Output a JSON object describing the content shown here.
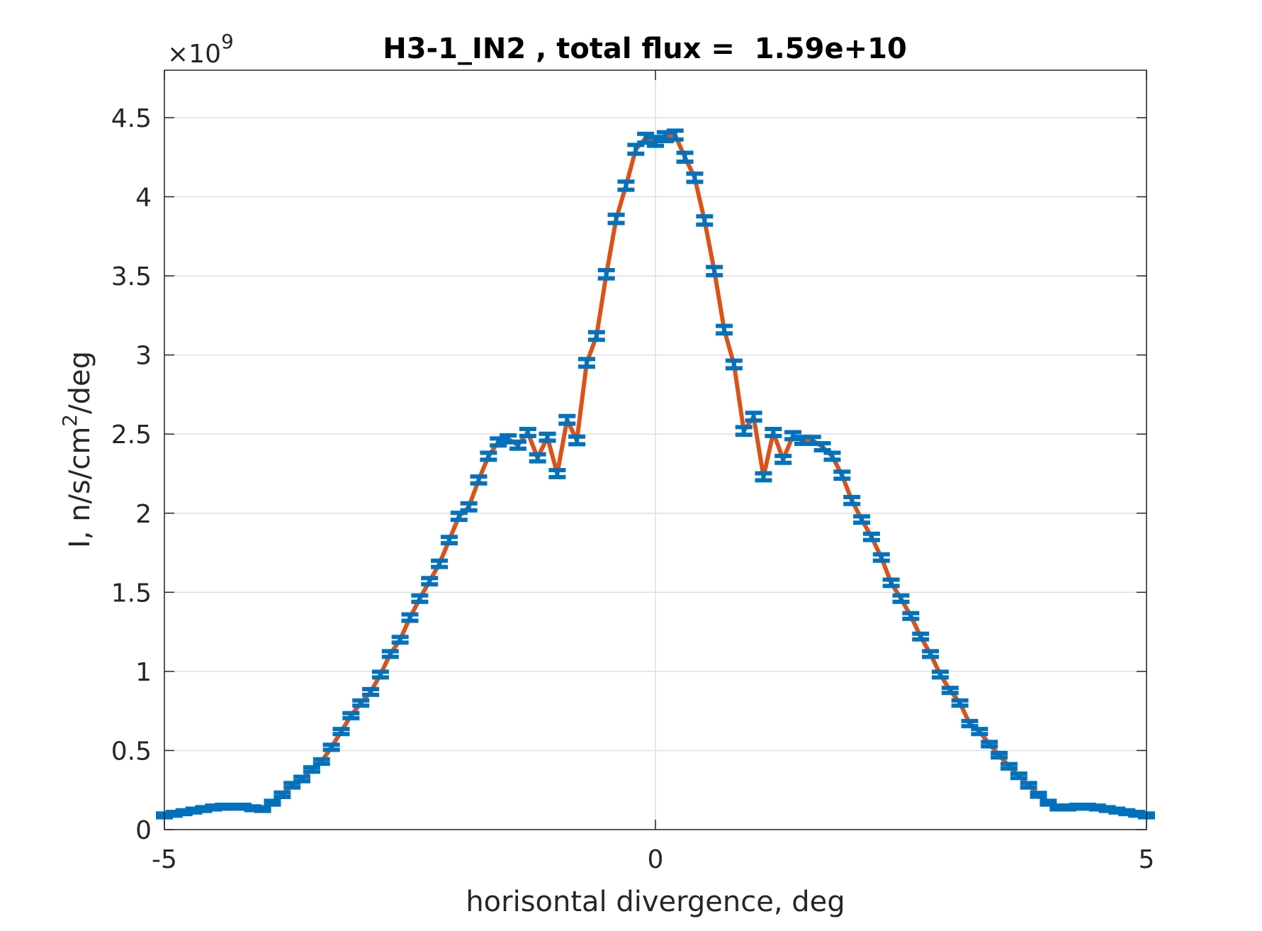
{
  "chart_data": {
    "type": "line",
    "title": "H3-1_IN2 , total flux =  1.59e+10",
    "xlabel": "horisontal divergence, deg",
    "ylabel": "I, n/s/cm²/deg",
    "ylabel_parts": {
      "before": "I, n/s/cm",
      "sup": "2",
      "after": "/deg"
    },
    "y_exponent": {
      "prefix": "×10",
      "power": "9"
    },
    "xlim": [
      -5,
      5
    ],
    "ylim": [
      0,
      4.8
    ],
    "xticks": [
      -5,
      0,
      5
    ],
    "xtick_labels": [
      "-5",
      "0",
      "5"
    ],
    "yticks": [
      0,
      0.5,
      1,
      1.5,
      2,
      2.5,
      3,
      3.5,
      4,
      4.5
    ],
    "ytick_labels": [
      "0",
      "0.5",
      "1",
      "1.5",
      "2",
      "2.5",
      "3",
      "3.5",
      "4",
      "4.5"
    ],
    "grid": true,
    "colors": {
      "line": "#D95319",
      "markers": "#0072BD",
      "grid": "#DFDFDF",
      "axes": "#262626"
    },
    "x": [
      -5.0,
      -4.9,
      -4.8,
      -4.7,
      -4.6,
      -4.5,
      -4.4,
      -4.3,
      -4.2,
      -4.1,
      -4.0,
      -3.9,
      -3.8,
      -3.7,
      -3.6,
      -3.5,
      -3.4,
      -3.3,
      -3.2,
      -3.1,
      -3.0,
      -2.9,
      -2.8,
      -2.7,
      -2.6,
      -2.5,
      -2.4,
      -2.3,
      -2.2,
      -2.1,
      -2.0,
      -1.9,
      -1.8,
      -1.7,
      -1.6,
      -1.5,
      -1.4,
      -1.3,
      -1.2,
      -1.1,
      -1.0,
      -0.9,
      -0.8,
      -0.7,
      -0.6,
      -0.5,
      -0.4,
      -0.3,
      -0.2,
      -0.1,
      0.0,
      0.1,
      0.2,
      0.3,
      0.4,
      0.5,
      0.6,
      0.7,
      0.8,
      0.9,
      1.0,
      1.1,
      1.2,
      1.3,
      1.4,
      1.5,
      1.6,
      1.7,
      1.8,
      1.9,
      2.0,
      2.1,
      2.2,
      2.3,
      2.4,
      2.5,
      2.6,
      2.7,
      2.8,
      2.9,
      3.0,
      3.1,
      3.2,
      3.3,
      3.4,
      3.5,
      3.6,
      3.7,
      3.8,
      3.9,
      4.0,
      4.1,
      4.2,
      4.3,
      4.4,
      4.5,
      4.6,
      4.7,
      4.8,
      4.9,
      5.0
    ],
    "series": [
      {
        "values": [
          0.09,
          0.1,
          0.11,
          0.12,
          0.13,
          0.14,
          0.145,
          0.145,
          0.145,
          0.135,
          0.13,
          0.17,
          0.22,
          0.28,
          0.32,
          0.38,
          0.43,
          0.52,
          0.62,
          0.72,
          0.8,
          0.87,
          0.98,
          1.11,
          1.2,
          1.34,
          1.46,
          1.57,
          1.68,
          1.83,
          1.98,
          2.04,
          2.21,
          2.36,
          2.45,
          2.47,
          2.43,
          2.51,
          2.35,
          2.48,
          2.25,
          2.59,
          2.46,
          2.95,
          3.12,
          3.51,
          3.86,
          4.07,
          4.3,
          4.37,
          4.35,
          4.38,
          4.39,
          4.25,
          4.12,
          3.85,
          3.53,
          3.16,
          2.94,
          2.52,
          2.61,
          2.23,
          2.51,
          2.34,
          2.49,
          2.46,
          2.46,
          2.42,
          2.36,
          2.24,
          2.08,
          1.96,
          1.85,
          1.72,
          1.56,
          1.46,
          1.35,
          1.22,
          1.11,
          0.98,
          0.88,
          0.8,
          0.67,
          0.62,
          0.54,
          0.47,
          0.4,
          0.34,
          0.28,
          0.22,
          0.17,
          0.14,
          0.14,
          0.145,
          0.145,
          0.14,
          0.13,
          0.12,
          0.11,
          0.1,
          0.09
        ],
        "errors": [
          0.012,
          0.012,
          0.012,
          0.012,
          0.012,
          0.012,
          0.012,
          0.012,
          0.012,
          0.012,
          0.012,
          0.012,
          0.014,
          0.014,
          0.014,
          0.014,
          0.014,
          0.016,
          0.016,
          0.016,
          0.016,
          0.018,
          0.018,
          0.018,
          0.018,
          0.02,
          0.02,
          0.02,
          0.02,
          0.02,
          0.022,
          0.022,
          0.022,
          0.022,
          0.022,
          0.022,
          0.022,
          0.022,
          0.022,
          0.022,
          0.022,
          0.024,
          0.024,
          0.024,
          0.024,
          0.026,
          0.026,
          0.026,
          0.028,
          0.028,
          0.028,
          0.028,
          0.028,
          0.028,
          0.026,
          0.026,
          0.026,
          0.024,
          0.024,
          0.024,
          0.024,
          0.022,
          0.022,
          0.022,
          0.022,
          0.022,
          0.022,
          0.022,
          0.022,
          0.022,
          0.022,
          0.02,
          0.02,
          0.02,
          0.02,
          0.02,
          0.018,
          0.018,
          0.018,
          0.018,
          0.016,
          0.016,
          0.016,
          0.016,
          0.014,
          0.014,
          0.014,
          0.014,
          0.014,
          0.012,
          0.012,
          0.012,
          0.012,
          0.012,
          0.012,
          0.012,
          0.012,
          0.012,
          0.012,
          0.012,
          0.012
        ]
      }
    ]
  }
}
